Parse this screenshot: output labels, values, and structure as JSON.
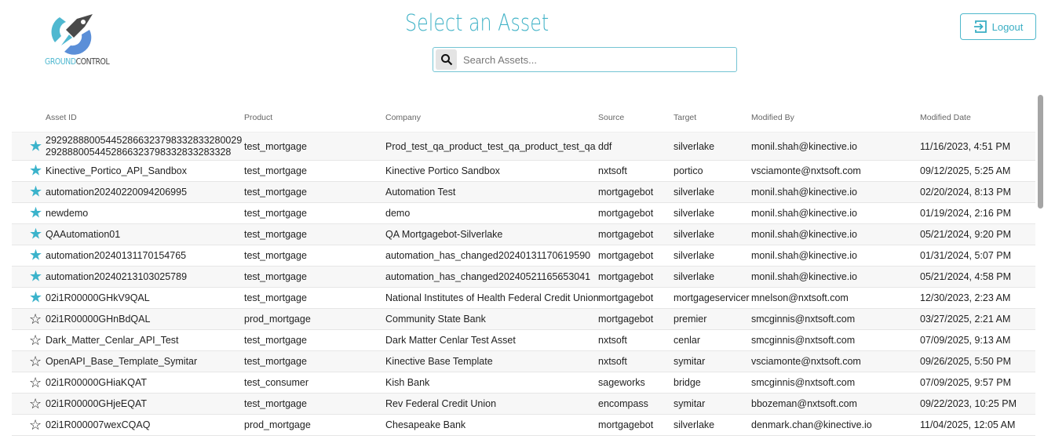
{
  "header": {
    "logo_text_a": "GROUND",
    "logo_text_b": "CONTROL",
    "title": "Select an Asset",
    "search_placeholder": "Search Assets...",
    "logout_label": "Logout"
  },
  "colors": {
    "accent": "#45b4c8",
    "favorite": "#3bb3cb"
  },
  "table": {
    "columns": [
      "Asset ID",
      "Product",
      "Company",
      "Source",
      "Target",
      "Modified By",
      "Modified Date"
    ],
    "rows": [
      {
        "fav": true,
        "id": "292928880054452866323798332833280029",
        "id2": "2928880054452866323798332833283328",
        "product": "test_mortgage",
        "company": "Prod_test_qa_product_test_qa_product_test_qa",
        "source": "ddf",
        "target": "silverlake",
        "by": "monil.shah@kinective.io",
        "date": "11/16/2023, 4:51 PM"
      },
      {
        "fav": true,
        "id": "Kinective_Portico_API_Sandbox",
        "product": "test_mortgage",
        "company": "Kinective Portico Sandbox",
        "source": "nxtsoft",
        "target": "portico",
        "by": "vsciamonte@nxtsoft.com",
        "date": "09/12/2025, 5:25 AM"
      },
      {
        "fav": true,
        "id": "automation20240220094206995",
        "product": "test_mortgage",
        "company": "Automation Test",
        "source": "mortgagebot",
        "target": "silverlake",
        "by": "monil.shah@kinective.io",
        "date": "02/20/2024, 8:13 PM"
      },
      {
        "fav": true,
        "id": "newdemo",
        "product": "test_mortgage",
        "company": "demo",
        "source": "mortgagebot",
        "target": "silverlake",
        "by": "monil.shah@kinective.io",
        "date": "01/19/2024, 2:16 PM"
      },
      {
        "fav": true,
        "id": "QAAutomation01",
        "product": "test_mortgage",
        "company": "QA Mortgagebot-Silverlake",
        "source": "mortgagebot",
        "target": "silverlake",
        "by": "monil.shah@kinective.io",
        "date": "05/21/2024, 9:20 PM"
      },
      {
        "fav": true,
        "id": "automation20240131170154765",
        "product": "test_mortgage",
        "company": "automation_has_changed20240131170619590",
        "source": "mortgagebot",
        "target": "silverlake",
        "by": "monil.shah@kinective.io",
        "date": "01/31/2024, 5:07 PM"
      },
      {
        "fav": true,
        "id": "automation20240213103025789",
        "product": "test_mortgage",
        "company": "automation_has_changed20240521165653041",
        "source": "mortgagebot",
        "target": "silverlake",
        "by": "monil.shah@kinective.io",
        "date": "05/21/2024, 4:58 PM"
      },
      {
        "fav": true,
        "id": "02i1R00000GHkV9QAL",
        "product": "test_mortgage",
        "company": "National Institutes of Health Federal Credit Union",
        "source": "mortgagebot",
        "target": "mortgageservicer",
        "by": "mnelson@nxtsoft.com",
        "date": "12/30/2023, 2:23 AM"
      },
      {
        "fav": false,
        "id": "02i1R00000GHnBdQAL",
        "product": "prod_mortgage",
        "company": "Community State Bank",
        "source": "mortgagebot",
        "target": "premier",
        "by": "smcginnis@nxtsoft.com",
        "date": "03/27/2025, 2:21 AM"
      },
      {
        "fav": false,
        "id": "Dark_Matter_Cenlar_API_Test",
        "product": "test_mortgage",
        "company": "Dark Matter Cenlar Test Asset",
        "source": "nxtsoft",
        "target": "cenlar",
        "by": "smcginnis@nxtsoft.com",
        "date": "07/09/2025, 9:13 AM"
      },
      {
        "fav": false,
        "id": "OpenAPI_Base_Template_Symitar",
        "product": "test_mortgage",
        "company": "Kinective Base Template",
        "source": "nxtsoft",
        "target": "symitar",
        "by": "vsciamonte@nxtsoft.com",
        "date": "09/26/2025, 5:50 PM"
      },
      {
        "fav": false,
        "id": "02i1R00000GHiaKQAT",
        "product": "test_consumer",
        "company": "Kish Bank",
        "source": "sageworks",
        "target": "bridge",
        "by": "smcginnis@nxtsoft.com",
        "date": "07/09/2025, 9:57 PM"
      },
      {
        "fav": false,
        "id": "02i1R00000GHjeEQAT",
        "product": "test_mortgage",
        "company": "Rev Federal Credit Union",
        "source": "encompass",
        "target": "symitar",
        "by": "bbozeman@nxtsoft.com",
        "date": "09/22/2023, 10:25 PM"
      },
      {
        "fav": false,
        "id": "02i1R000007wexCQAQ",
        "product": "prod_mortgage",
        "company": "Chesapeake Bank",
        "source": "mortgagebot",
        "target": "silverlake",
        "by": "denmark.chan@kinective.io",
        "date": "11/04/2025, 12:05 AM"
      }
    ]
  }
}
